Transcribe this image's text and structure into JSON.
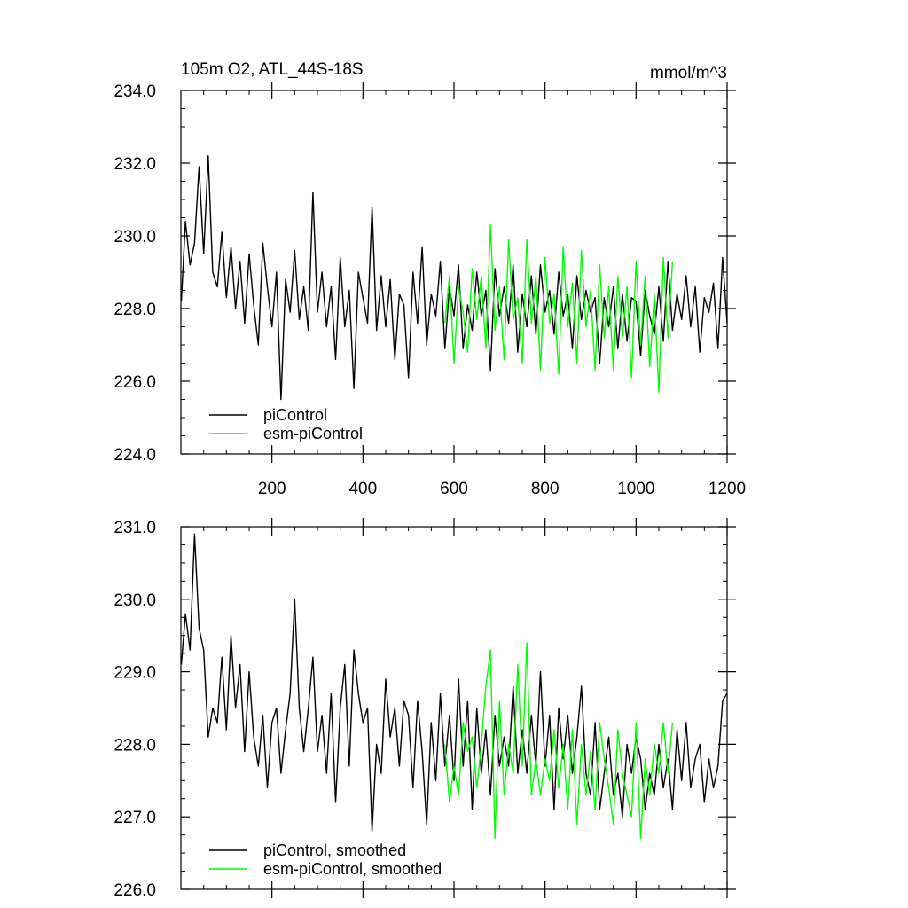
{
  "chart_data": [
    {
      "type": "line",
      "title_left": "105m O2, ATL_44S-18S",
      "title_right": "mmol/m^3",
      "xlim": [
        0,
        1200
      ],
      "ylim": [
        224,
        234
      ],
      "x_ticks": [
        200,
        400,
        600,
        800,
        1000,
        1200
      ],
      "x_tick_labels": [
        "200",
        "400",
        "600",
        "800",
        "1000",
        "1200"
      ],
      "y_ticks": [
        224,
        226,
        228,
        230,
        232,
        234
      ],
      "y_tick_labels": [
        "224.0",
        "226.0",
        "228.0",
        "230.0",
        "232.0",
        "234.0"
      ],
      "legend_position": "bottom-left",
      "series": [
        {
          "name": "piControl",
          "color": "#000000",
          "x": [
            1,
            10,
            20,
            30,
            40,
            50,
            60,
            70,
            80,
            90,
            100,
            110,
            120,
            130,
            140,
            150,
            160,
            170,
            180,
            190,
            200,
            210,
            220,
            230,
            240,
            250,
            260,
            270,
            280,
            290,
            300,
            310,
            320,
            330,
            340,
            350,
            360,
            370,
            380,
            390,
            400,
            410,
            420,
            430,
            440,
            450,
            460,
            470,
            480,
            490,
            500,
            510,
            520,
            530,
            540,
            550,
            560,
            570,
            580,
            590,
            600,
            610,
            620,
            630,
            640,
            650,
            660,
            670,
            680,
            690,
            700,
            710,
            720,
            730,
            740,
            750,
            760,
            770,
            780,
            790,
            800,
            810,
            820,
            830,
            840,
            850,
            860,
            870,
            880,
            890,
            900,
            910,
            920,
            930,
            940,
            950,
            960,
            970,
            980,
            990,
            1000,
            1010,
            1020,
            1030,
            1040,
            1050,
            1060,
            1070,
            1080,
            1090,
            1100,
            1110,
            1120,
            1130,
            1140,
            1150,
            1160,
            1170,
            1180,
            1190,
            1200
          ],
          "y": [
            228.2,
            230.4,
            229.2,
            229.8,
            231.9,
            229.5,
            232.2,
            229.0,
            228.6,
            230.1,
            228.3,
            229.7,
            228.0,
            229.3,
            227.6,
            229.5,
            228.1,
            227.0,
            229.8,
            228.6,
            227.5,
            229.0,
            225.5,
            228.8,
            227.9,
            229.6,
            227.7,
            228.6,
            227.4,
            231.2,
            227.9,
            229.0,
            227.5,
            228.6,
            226.6,
            229.4,
            227.5,
            228.5,
            225.8,
            229.0,
            228.3,
            227.6,
            230.8,
            227.4,
            228.9,
            227.5,
            228.8,
            226.6,
            228.4,
            228.1,
            226.1,
            229.0,
            227.6,
            229.7,
            227.0,
            228.4,
            227.8,
            229.3,
            226.9,
            228.6,
            227.8,
            229.2,
            226.9,
            228.1,
            227.4,
            229.0,
            227.8,
            228.5,
            226.3,
            229.1,
            227.8,
            228.6,
            227.6,
            229.2,
            226.8,
            228.4,
            227.5,
            228.9,
            227.3,
            229.2,
            227.9,
            228.5,
            227.3,
            229.0,
            227.8,
            228.4,
            226.9,
            228.9,
            227.7,
            228.5,
            227.9,
            228.3,
            226.5,
            228.3,
            227.5,
            228.6,
            226.9,
            228.4,
            227.1,
            228.3,
            228.2,
            226.7,
            228.5,
            227.8,
            227.3,
            228.6,
            227.1,
            229.3,
            227.4,
            228.4,
            227.7,
            228.9,
            227.5,
            228.6,
            226.8,
            228.3,
            227.9,
            228.7,
            226.9,
            229.4,
            227.6
          ]
        },
        {
          "name": "esm-piControl",
          "color": "#00ff00",
          "x": [
            580,
            590,
            600,
            610,
            620,
            630,
            640,
            650,
            660,
            670,
            680,
            690,
            700,
            710,
            720,
            730,
            740,
            750,
            760,
            770,
            780,
            790,
            800,
            810,
            820,
            830,
            840,
            850,
            860,
            870,
            880,
            890,
            900,
            910,
            920,
            930,
            940,
            950,
            960,
            970,
            980,
            990,
            1000,
            1010,
            1020,
            1030,
            1040,
            1050,
            1060,
            1070,
            1080
          ],
          "y": [
            227.6,
            228.9,
            226.5,
            228.6,
            227.9,
            226.8,
            229.1,
            227.7,
            228.9,
            226.9,
            230.3,
            227.4,
            228.6,
            226.6,
            229.9,
            227.7,
            228.3,
            226.5,
            229.9,
            227.6,
            228.9,
            226.3,
            229.4,
            227.6,
            228.4,
            226.2,
            229.7,
            227.5,
            228.7,
            226.5,
            229.6,
            227.5,
            228.5,
            226.3,
            229.2,
            227.2,
            228.6,
            226.3,
            228.9,
            227.2,
            228.6,
            226.1,
            229.3,
            227.0,
            228.9,
            226.4,
            228.4,
            225.7,
            229.4,
            227.2,
            229.3
          ]
        }
      ]
    },
    {
      "type": "line",
      "xlim": [
        0,
        1200
      ],
      "ylim": [
        226,
        231
      ],
      "x_ticks": [
        200,
        400,
        600,
        800,
        1000,
        1200
      ],
      "y_ticks": [
        226,
        227,
        228,
        229,
        230,
        231
      ],
      "y_tick_labels": [
        "226.0",
        "227.0",
        "228.0",
        "229.0",
        "230.0",
        "231.0"
      ],
      "legend_position": "bottom-left",
      "series": [
        {
          "name": "piControl, smoothed",
          "color": "#000000",
          "x": [
            1,
            10,
            20,
            30,
            40,
            50,
            60,
            70,
            80,
            90,
            100,
            110,
            120,
            130,
            140,
            150,
            160,
            170,
            180,
            190,
            200,
            210,
            220,
            230,
            240,
            250,
            260,
            270,
            280,
            290,
            300,
            310,
            320,
            330,
            340,
            350,
            360,
            370,
            380,
            390,
            400,
            410,
            420,
            430,
            440,
            450,
            460,
            470,
            480,
            490,
            500,
            510,
            520,
            530,
            540,
            550,
            560,
            570,
            580,
            590,
            600,
            610,
            620,
            630,
            640,
            650,
            660,
            670,
            680,
            690,
            700,
            710,
            720,
            730,
            740,
            750,
            760,
            770,
            780,
            790,
            800,
            810,
            820,
            830,
            840,
            850,
            860,
            870,
            880,
            890,
            900,
            910,
            920,
            930,
            940,
            950,
            960,
            970,
            980,
            990,
            1000,
            1010,
            1020,
            1030,
            1040,
            1050,
            1060,
            1070,
            1080,
            1090,
            1100,
            1110,
            1120,
            1130,
            1140,
            1150,
            1160,
            1170,
            1180,
            1190,
            1200
          ],
          "y": [
            229.1,
            229.8,
            229.3,
            230.9,
            229.6,
            229.3,
            228.1,
            228.5,
            228.3,
            229.2,
            228.2,
            229.5,
            228.5,
            229.1,
            227.9,
            229.0,
            228.1,
            227.7,
            228.4,
            227.4,
            228.3,
            228.5,
            227.6,
            228.2,
            228.7,
            230.0,
            228.5,
            227.9,
            228.5,
            229.2,
            227.9,
            228.4,
            227.6,
            228.7,
            227.2,
            228.5,
            229.1,
            227.7,
            229.3,
            228.7,
            228.3,
            228.5,
            226.8,
            228.0,
            227.6,
            228.9,
            228.1,
            228.5,
            227.7,
            228.6,
            228.4,
            227.4,
            228.6,
            227.9,
            226.9,
            228.3,
            227.5,
            228.7,
            227.7,
            228.4,
            227.5,
            228.9,
            227.7,
            228.6,
            227.1,
            228.5,
            227.6,
            228.2,
            227.3,
            228.4,
            227.7,
            228.1,
            227.7,
            228.8,
            227.6,
            228.2,
            227.6,
            228.4,
            227.7,
            229.0,
            227.7,
            228.4,
            227.1,
            228.5,
            227.8,
            228.4,
            227.6,
            228.1,
            228.8,
            227.6,
            227.3,
            228.3,
            227.1,
            227.6,
            228.1,
            227.3,
            227.6,
            227.0,
            228.0,
            227.6,
            228.1,
            227.8,
            227.1,
            227.6,
            227.3,
            228.0,
            227.4,
            227.8,
            227.1,
            228.2,
            227.5,
            228.3,
            227.4,
            227.8,
            228.0,
            227.2,
            227.8,
            227.4,
            227.7,
            228.6,
            228.7
          ]
        },
        {
          "name": "esm-piControl, smoothed",
          "color": "#00ff00",
          "x": [
            580,
            590,
            600,
            610,
            620,
            630,
            640,
            650,
            660,
            670,
            680,
            690,
            700,
            710,
            720,
            730,
            740,
            750,
            760,
            770,
            780,
            790,
            800,
            810,
            820,
            830,
            840,
            850,
            860,
            870,
            880,
            890,
            900,
            910,
            920,
            930,
            940,
            950,
            960,
            970,
            980,
            990,
            1000,
            1010,
            1020,
            1030,
            1040,
            1050,
            1060,
            1070,
            1080
          ],
          "y": [
            228.0,
            227.2,
            227.7,
            227.3,
            228.3,
            227.9,
            228.1,
            227.4,
            228.0,
            228.8,
            229.3,
            226.7,
            228.6,
            227.3,
            228.0,
            227.6,
            229.1,
            227.7,
            229.4,
            227.3,
            227.8,
            227.3,
            227.8,
            227.5,
            228.2,
            227.4,
            228.0,
            227.1,
            228.2,
            226.9,
            228.0,
            227.3,
            227.9,
            227.1,
            228.3,
            227.8,
            227.4,
            226.9,
            228.2,
            227.6,
            227.3,
            227.0,
            228.3,
            226.7,
            227.8,
            227.3,
            228.0,
            227.6,
            228.3,
            227.6,
            228.3
          ]
        }
      ]
    }
  ]
}
